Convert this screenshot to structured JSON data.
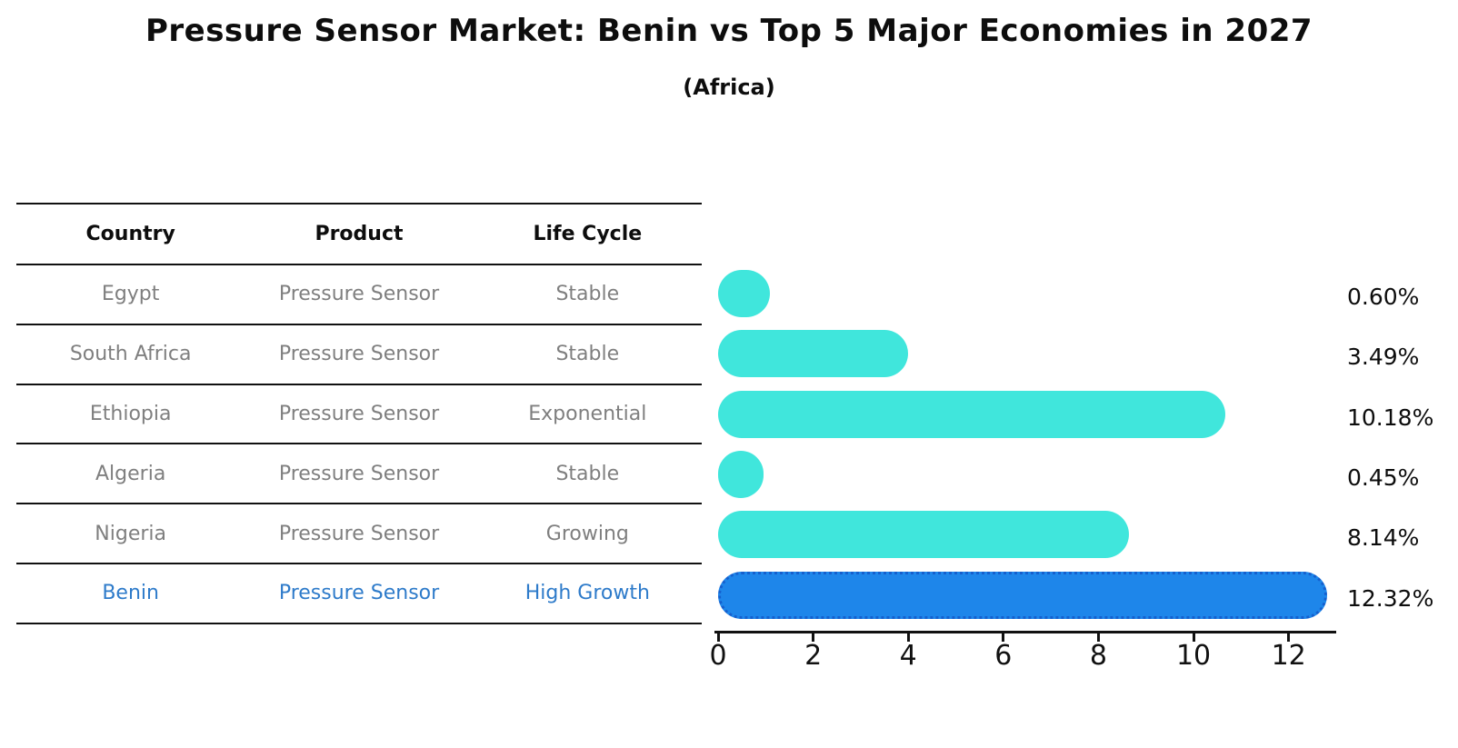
{
  "title": "Pressure Sensor Market: Benin vs Top 5 Major Economies in 2027",
  "subtitle": "(Africa)",
  "table": {
    "headers": [
      "Country",
      "Product",
      "Life Cycle"
    ],
    "rows": [
      {
        "country": "Egypt",
        "product": "Pressure Sensor",
        "life_cycle": "Stable",
        "highlight": false
      },
      {
        "country": "South Africa",
        "product": "Pressure Sensor",
        "life_cycle": "Stable",
        "highlight": false
      },
      {
        "country": "Ethiopia",
        "product": "Pressure Sensor",
        "life_cycle": "Exponential",
        "highlight": false
      },
      {
        "country": "Algeria",
        "product": "Pressure Sensor",
        "life_cycle": "Stable",
        "highlight": false
      },
      {
        "country": "Nigeria",
        "product": "Pressure Sensor",
        "life_cycle": "Growing",
        "highlight": false
      },
      {
        "country": "Benin",
        "product": "Pressure Sensor",
        "life_cycle": "High Growth",
        "highlight": true
      }
    ]
  },
  "chart_data": {
    "type": "bar",
    "orientation": "horizontal",
    "title": "Pressure Sensor Market: Benin vs Top 5 Major Economies in 2027",
    "subtitle": "(Africa)",
    "categories": [
      "Egypt",
      "South Africa",
      "Ethiopia",
      "Algeria",
      "Nigeria",
      "Benin"
    ],
    "values": [
      0.6,
      3.49,
      10.18,
      0.45,
      8.14,
      12.32
    ],
    "value_labels": [
      "0.60%",
      "3.49%",
      "10.18%",
      "0.45%",
      "8.14%",
      "12.32%"
    ],
    "highlight_index": 5,
    "x_ticks": [
      0,
      2,
      4,
      6,
      8,
      10,
      12
    ],
    "xlim": [
      0,
      13
    ],
    "grid": false,
    "legend": false,
    "bar_color": "#40E6DC",
    "highlight_bar_color": "#1E86EA",
    "highlight_border_color": "#1560CE",
    "highlight_text_color": "#2E7BCA",
    "table_text_color": "#7F7F7F",
    "axis_color": "#111111"
  }
}
